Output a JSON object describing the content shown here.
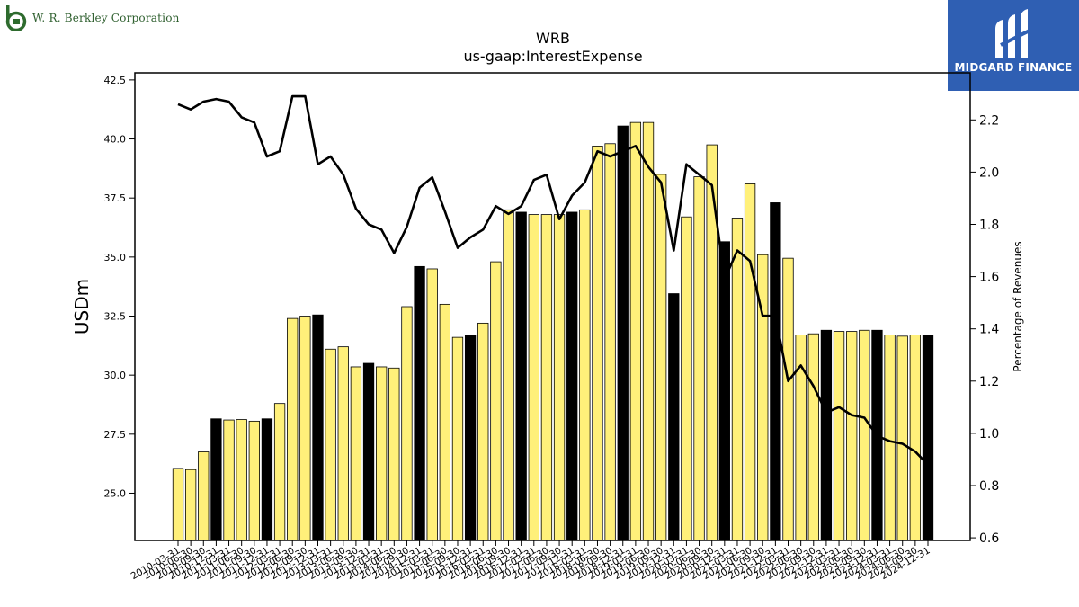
{
  "header": {
    "company_name": "W. R. Berkley Corporation",
    "brand_name": "MIDGARD FINANCE"
  },
  "chart_data": {
    "type": "bar+line",
    "title": "WRB",
    "subtitle": "us-gaap:InterestExpense",
    "ylabel": "USDm",
    "y2label": "Percentage of Revenues",
    "ylim": [
      23.0,
      42.8
    ],
    "y2lim": [
      0.59,
      2.38
    ],
    "yticks": [
      "25.0",
      "27.5",
      "30.0",
      "32.5",
      "35.0",
      "37.5",
      "40.0",
      "42.5"
    ],
    "y2ticks": [
      "0.6",
      "0.8",
      "1.0",
      "1.2",
      "1.4",
      "1.6",
      "1.8",
      "2.0",
      "2.2"
    ],
    "categories": [
      "2010-03-31",
      "2010-06-30",
      "2010-09-30",
      "2010-12-31",
      "2011-03-31",
      "2011-06-30",
      "2011-09-30",
      "2011-12-31",
      "2012-03-31",
      "2012-06-30",
      "2012-09-30",
      "2012-12-31",
      "2013-03-31",
      "2013-06-30",
      "2013-09-30",
      "2013-12-31",
      "2014-03-31",
      "2014-06-30",
      "2014-09-30",
      "2014-12-31",
      "2015-03-31",
      "2015-06-30",
      "2015-09-30",
      "2015-12-31",
      "2016-03-31",
      "2016-06-30",
      "2016-09-30",
      "2016-12-31",
      "2017-03-31",
      "2017-06-30",
      "2017-09-30",
      "2017-12-31",
      "2018-03-31",
      "2018-06-30",
      "2018-09-30",
      "2018-12-31",
      "2019-03-31",
      "2019-06-30",
      "2019-09-30",
      "2019-12-31",
      "2020-03-31",
      "2020-06-30",
      "2020-09-30",
      "2020-12-31",
      "2021-03-31",
      "2021-06-30",
      "2021-09-30",
      "2021-12-31",
      "2022-03-31",
      "2022-06-30",
      "2022-09-30",
      "2022-12-31",
      "2023-03-31",
      "2023-06-30",
      "2023-09-30",
      "2023-12-31",
      "2024-03-31",
      "2024-06-30",
      "2024-09-30",
      "2024-12-31"
    ],
    "series": [
      {
        "kind": "bar",
        "values": [
          26.05,
          26.0,
          26.75,
          28.15,
          28.1,
          28.12,
          28.05,
          28.15,
          28.8,
          32.4,
          32.5,
          32.55,
          31.1,
          31.2,
          30.35,
          30.5,
          30.35,
          30.3,
          32.9,
          34.6,
          34.5,
          33.0,
          31.6,
          31.7,
          32.2,
          34.8,
          37.0,
          36.9,
          36.8,
          36.8,
          36.8,
          36.9,
          37.0,
          39.7,
          39.8,
          40.55,
          40.7,
          40.7,
          38.5,
          33.45,
          36.7,
          38.4,
          39.75,
          35.65,
          36.65,
          38.1,
          35.1,
          37.3,
          34.95,
          31.7,
          31.75,
          31.9,
          31.85,
          31.85,
          31.9,
          31.9,
          31.7,
          31.65,
          31.7,
          31.7
        ],
        "highlight_color": "#000000",
        "color": "#fff07a"
      },
      {
        "kind": "line",
        "axis": "right",
        "color": "#000000",
        "values": [
          2.26,
          2.24,
          2.27,
          2.28,
          2.27,
          2.21,
          2.19,
          2.06,
          2.08,
          2.29,
          2.29,
          2.03,
          2.06,
          1.99,
          1.86,
          1.8,
          1.78,
          1.69,
          1.79,
          1.94,
          1.98,
          1.85,
          1.71,
          1.75,
          1.78,
          1.87,
          1.84,
          1.87,
          1.97,
          1.99,
          1.82,
          1.91,
          1.96,
          2.08,
          2.06,
          2.08,
          2.1,
          2.02,
          1.96,
          1.7,
          2.03,
          1.99,
          1.95,
          1.59,
          1.7,
          1.66,
          1.45,
          1.45,
          1.2,
          1.26,
          1.18,
          1.08,
          1.1,
          1.07,
          1.06,
          0.99,
          0.97,
          0.96,
          0.93,
          0.88
        ]
      }
    ],
    "highlighted_categories": [
      3,
      7,
      11,
      15,
      19,
      23,
      27,
      31,
      35,
      39,
      43,
      47,
      51,
      55,
      59
    ]
  }
}
